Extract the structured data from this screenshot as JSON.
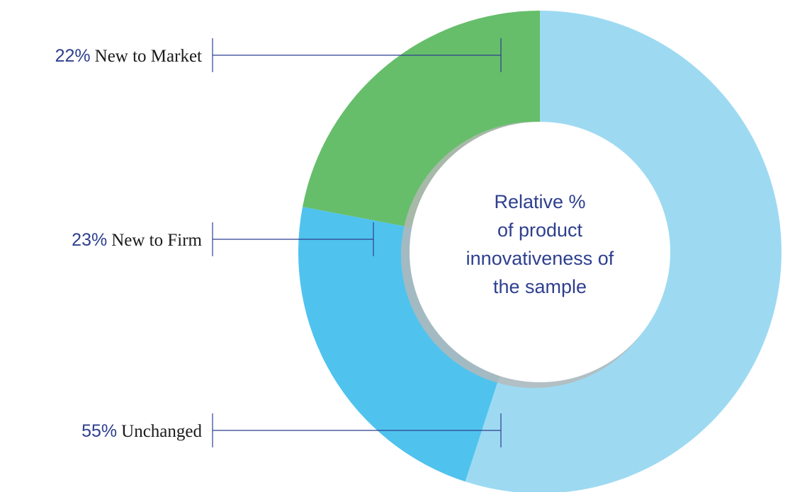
{
  "chart_data": {
    "type": "donut",
    "categories": [
      "Unchanged",
      "New to Firm",
      "New to Market"
    ],
    "values": [
      55,
      23,
      22
    ],
    "value_labels": [
      "55%",
      "23%",
      "22%"
    ],
    "colors": [
      "#9ddaf2",
      "#4fc3ee",
      "#66be6a"
    ],
    "center_label": [
      "Relative %",
      "of product",
      "innovativeness of",
      "the sample"
    ]
  }
}
